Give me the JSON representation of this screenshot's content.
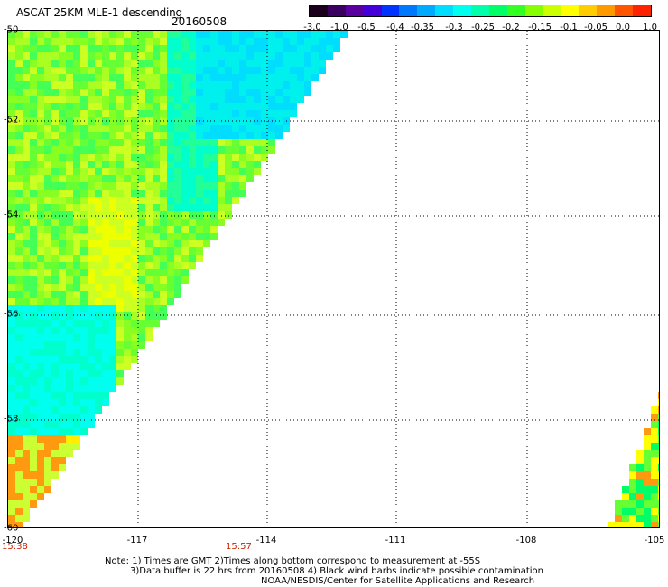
{
  "header": {
    "title": "ASCAT 25KM MLE-1 descending",
    "date": "20160508"
  },
  "colorbar": {
    "labels": [
      "-3.0",
      "-1.0",
      "-0.5",
      "-0.4",
      "-0.35",
      "-0.3",
      "-0.25",
      "-0.2",
      "-0.15",
      "-0.1",
      "-0.05",
      "0.0",
      "1.0"
    ],
    "colors": [
      "#1a001a",
      "#3a0060",
      "#5a00a0",
      "#4400d8",
      "#0033ff",
      "#0077ff",
      "#00aaff",
      "#00ddff",
      "#00ffee",
      "#00ffaa",
      "#00ff66",
      "#33ff22",
      "#88ff00",
      "#ccff00",
      "#ffff00",
      "#ffcc00",
      "#ff9900",
      "#ff5500",
      "#ff2200"
    ]
  },
  "map": {
    "lat_labels": [
      "-50",
      "-52",
      "-54",
      "-56",
      "-58",
      "-60"
    ],
    "lon_labels": [
      "-120",
      "-117",
      "-114",
      "-111",
      "-108",
      "-105"
    ],
    "times": [
      "15:38",
      "15:57"
    ]
  },
  "notes": {
    "line1": "Note: 1) Times are GMT 2)Times along bottom correspond to measurement at -55S",
    "line2": "3)Data buffer is 22 hrs from 20160508 4) Black wind barbs indicate possible contamination",
    "line3": "NOAA/NESDIS/Center for Satellite Applications and Research"
  }
}
